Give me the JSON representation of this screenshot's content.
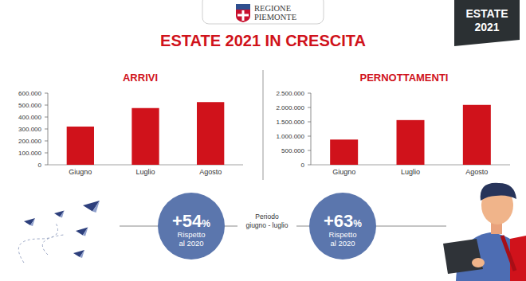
{
  "logo": [
    "REGIONE",
    "PIEMONTE"
  ],
  "badge": [
    "ESTATE",
    "2021"
  ],
  "title": "ESTATE 2021 IN CRESCITA",
  "chart_data": [
    {
      "type": "bar",
      "title": "ARRIVI",
      "categories": [
        "Giugno",
        "Luglio",
        "Agosto"
      ],
      "values": [
        320000,
        475000,
        525000
      ],
      "color": "#d0121b",
      "ylim": [
        0,
        600000
      ],
      "yticks": [
        0,
        {
          "value": 100000,
          "label": "100.000"
        },
        {
          "value": 200000,
          "label": "200.000"
        },
        {
          "value": 300000,
          "label": "300.000"
        },
        {
          "value": 400000,
          "label": "400.000"
        },
        {
          "value": 500000,
          "label": "500.000"
        },
        {
          "value": 600000,
          "label": "600.000"
        }
      ],
      "grid": false
    },
    {
      "type": "bar",
      "title": "PERNOTTAMENTI",
      "categories": [
        "Giugno",
        "Luglio",
        "Agosto"
      ],
      "values": [
        880000,
        1560000,
        2090000
      ],
      "color": "#d0121b",
      "ylim": [
        0,
        2500000
      ],
      "yticks": [
        0,
        {
          "value": 500000,
          "label": "500.000"
        },
        {
          "value": 1000000,
          "label": "1.000.000"
        },
        {
          "value": 1500000,
          "label": "1.500.000"
        },
        {
          "value": 2000000,
          "label": "2.000.000"
        },
        {
          "value": 2500000,
          "label": "2.500.000"
        }
      ],
      "grid": false
    }
  ],
  "stats": [
    {
      "label": "+54%",
      "text": [
        "Rispetto",
        "al 2020"
      ]
    },
    {
      "label": "+63%",
      "text": [
        "Rispetto",
        "al 2020"
      ]
    }
  ],
  "period": [
    "Periodo",
    "giugno - luglio"
  ]
}
